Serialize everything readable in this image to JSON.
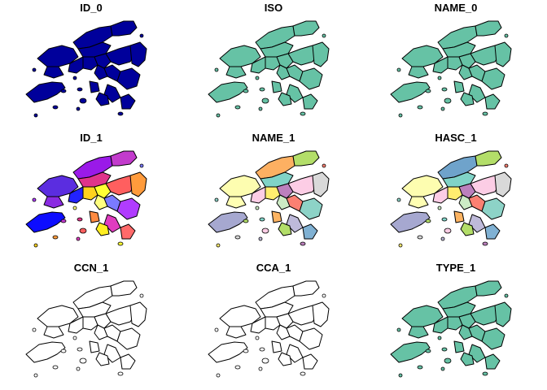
{
  "panels": [
    {
      "title": "ID_0",
      "palette": [
        "#00009b"
      ]
    },
    {
      "title": "ISO",
      "palette": [
        "#66c2a5"
      ]
    },
    {
      "title": "NAME_0",
      "palette": [
        "#66c2a5"
      ]
    },
    {
      "title": "ID_1",
      "palette": [
        "#0d0dff",
        "#5b2de0",
        "#9a1ae8",
        "#c23bcc",
        "#e0348a",
        "#ff5f5f",
        "#ff9b3c",
        "#ffd21e",
        "#ffff33",
        "#ffff80",
        "#7a7aff",
        "#b03cff",
        "#e03cc0",
        "#ff6a6a",
        "#ff8a40",
        "#ffee22",
        "#2222ff",
        "#8a2be2"
      ]
    },
    {
      "title": "NAME_1",
      "palette": [
        "#a6a8d0",
        "#fdfdb0",
        "#fdb062",
        "#b3de69",
        "#80d3c7",
        "#fccde5",
        "#d9d9d9",
        "#ffed6f",
        "#bc80bd",
        "#ccebc5",
        "#fb8072",
        "#8dd3c7",
        "#bebada",
        "#80b1d3",
        "#fdb462",
        "#b3de69",
        "#fccde5",
        "#ffffb3"
      ]
    },
    {
      "title": "HASC_1",
      "palette": [
        "#a6a8d0",
        "#fdfdb0",
        "#6fa3cb",
        "#b3de69",
        "#80d3c7",
        "#fccde5",
        "#d9d9d9",
        "#ffed6f",
        "#bc80bd",
        "#ccebc5",
        "#fb8072",
        "#8dd3c7",
        "#bebada",
        "#80b1d3",
        "#fdb462",
        "#b3de69",
        "#fccde5",
        "#ffffb3"
      ]
    },
    {
      "title": "CCN_1",
      "palette": [
        "#ffffff"
      ]
    },
    {
      "title": "CCA_1",
      "palette": [
        "#ffffff"
      ]
    },
    {
      "title": "TYPE_1",
      "palette": [
        "#66c2a5"
      ]
    }
  ]
}
